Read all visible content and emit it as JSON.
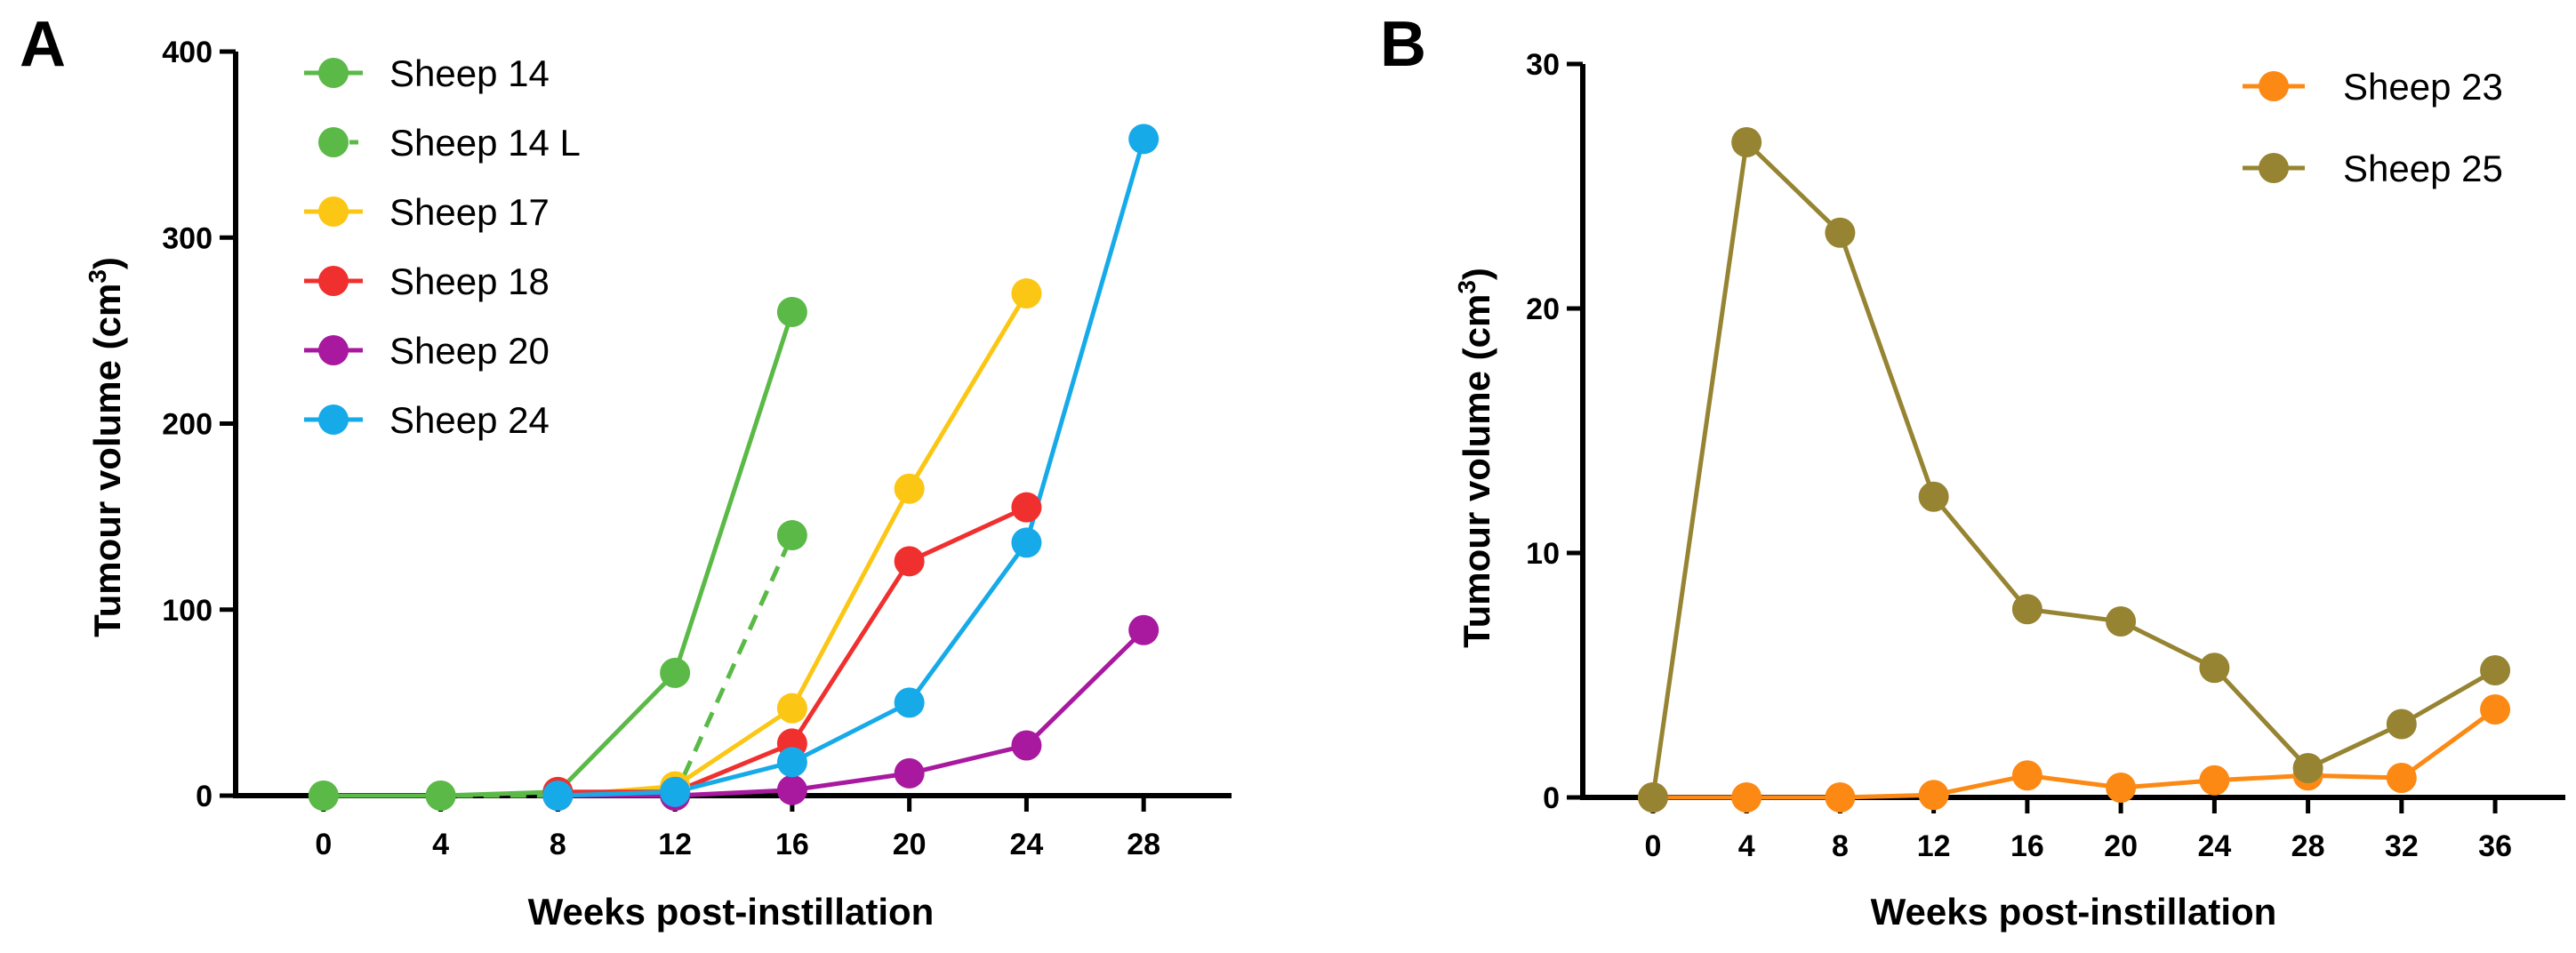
{
  "chart_data": [
    {
      "type": "line",
      "panel_label": "A",
      "xlabel": "Weeks post-instillation",
      "ylabel": "Tumour volume (cm",
      "ylabel_sup": "3",
      "ylabel_close": ")",
      "xticks": [
        0,
        4,
        8,
        12,
        16,
        20,
        24,
        28
      ],
      "yticks": [
        0,
        100,
        200,
        300,
        400
      ],
      "xlim": [
        -3,
        31
      ],
      "ylim": [
        0,
        400
      ],
      "legend_position": "top-left",
      "series": [
        {
          "name": "Sheep 14",
          "color": "#5bb947",
          "dashed": false,
          "x": [
            0,
            4,
            8,
            12,
            16
          ],
          "values": [
            0,
            0,
            2,
            66,
            260
          ]
        },
        {
          "name": "Sheep 14 L",
          "color": "#5bb947",
          "dashed": true,
          "x": [
            0,
            4,
            8,
            12,
            16
          ],
          "values": [
            0,
            0,
            0,
            0,
            140
          ]
        },
        {
          "name": "Sheep 17",
          "color": "#fcc614",
          "dashed": false,
          "x": [
            8,
            12,
            16,
            20,
            24
          ],
          "values": [
            0,
            5,
            47,
            165,
            270
          ]
        },
        {
          "name": "Sheep 18",
          "color": "#f0302e",
          "dashed": false,
          "x": [
            8,
            12,
            16,
            20,
            24
          ],
          "values": [
            2,
            2,
            28,
            126,
            155
          ]
        },
        {
          "name": "Sheep 20",
          "color": "#a8199f",
          "dashed": false,
          "x": [
            8,
            12,
            16,
            20,
            24,
            28
          ],
          "values": [
            0,
            0,
            3,
            12,
            27,
            89
          ]
        },
        {
          "name": "Sheep 24",
          "color": "#17aae9",
          "dashed": false,
          "x": [
            8,
            12,
            16,
            20,
            24,
            28
          ],
          "values": [
            0,
            2,
            18,
            50,
            136,
            353
          ]
        }
      ]
    },
    {
      "type": "line",
      "panel_label": "B",
      "xlabel": "Weeks post-instillation",
      "ylabel": "Tumour volume (cm",
      "ylabel_sup": "3",
      "ylabel_close": ")",
      "xticks": [
        0,
        4,
        8,
        12,
        16,
        20,
        24,
        28,
        32,
        36
      ],
      "yticks": [
        0,
        10,
        20,
        30
      ],
      "xlim": [
        -3,
        39
      ],
      "ylim": [
        0,
        30
      ],
      "legend_position": "top-right",
      "series": [
        {
          "name": "Sheep 23",
          "color": "#fc8914",
          "dashed": false,
          "x": [
            0,
            4,
            8,
            12,
            16,
            20,
            24,
            28,
            32,
            36
          ],
          "values": [
            0,
            0,
            0,
            0.1,
            0.9,
            0.4,
            0.7,
            0.9,
            0.8,
            3.6
          ]
        },
        {
          "name": "Sheep 25",
          "color": "#968432",
          "dashed": false,
          "x": [
            0,
            4,
            8,
            12,
            16,
            20,
            24,
            28,
            32,
            36
          ],
          "values": [
            0,
            26.8,
            23.1,
            12.3,
            7.7,
            7.2,
            5.3,
            1.2,
            3.0,
            5.2
          ]
        }
      ]
    }
  ]
}
